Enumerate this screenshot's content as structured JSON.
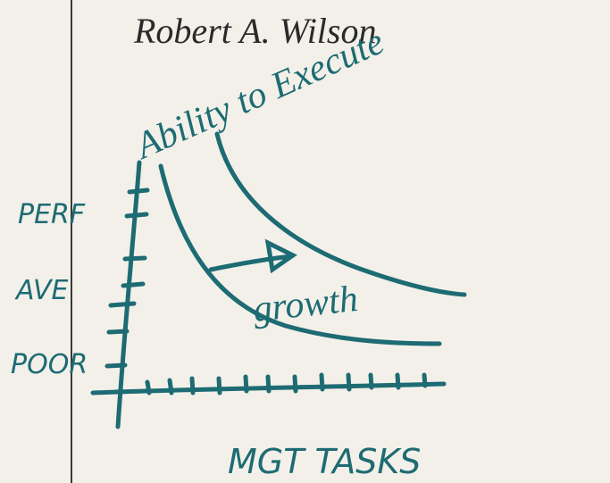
{
  "signature": "Robert A. Wilson",
  "y_axis_label": "Ability to Execute",
  "y_labels": [
    "PERF",
    "AVE",
    "POOR"
  ],
  "annotation": "growth",
  "x_axis_label": "MGT TASKS"
}
